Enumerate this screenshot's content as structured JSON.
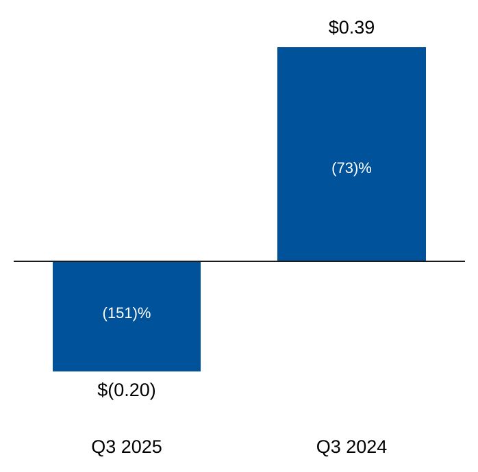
{
  "chart_data": {
    "type": "bar",
    "title": "",
    "categories": [
      "Q3 2025",
      "Q3 2024"
    ],
    "values": [
      -0.2,
      0.39
    ],
    "value_labels": [
      "$(0.20)",
      "$0.39"
    ],
    "bar_labels": [
      "(151)%",
      "(73)%"
    ],
    "xlabel": "",
    "ylabel": "",
    "ylim": [
      -0.25,
      0.45
    ],
    "baseline": 0,
    "grid": false,
    "legend": false,
    "colors": {
      "bar": "#00529B",
      "axis": "#1a1a1a",
      "value_label_text": "#000000",
      "bar_label_text": "#ffffff",
      "background": "#ffffff"
    }
  }
}
